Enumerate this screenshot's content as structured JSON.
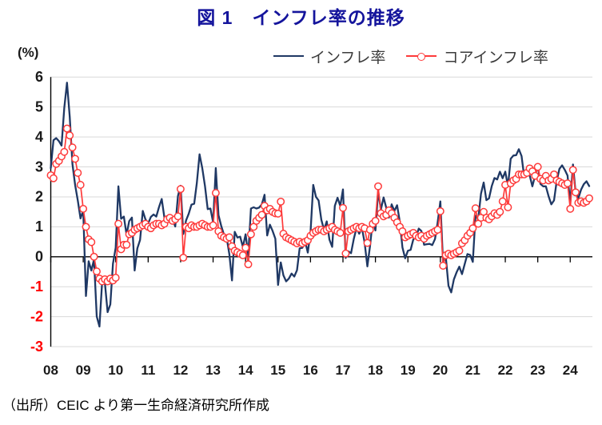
{
  "title": "図 1　インフレ率の推移",
  "y_axis_unit": "(%)",
  "source_note": "（出所）CEIC より第一生命経済研究所作成",
  "colors": {
    "title": "#14149c",
    "inflation_line": "#1f3864",
    "core_line": "#fe3b3b",
    "negative_axis_label": "#ff0000",
    "axis_label": "#1a1a1a",
    "gridline": "#d9d9d9",
    "axis_line": "#000000"
  },
  "chart_data": {
    "type": "line",
    "frequency": "monthly",
    "start": "2008-01",
    "end": "2024-08",
    "title": "図 1　インフレ率の推移",
    "xlabel": "",
    "ylabel": "(%)",
    "ylim": [
      -3,
      6
    ],
    "y_tick_step": 1,
    "grid": "horizontal",
    "legend_position": "top-right",
    "x_tick_labels": [
      "08",
      "09",
      "10",
      "11",
      "12",
      "13",
      "14",
      "15",
      "16",
      "17",
      "18",
      "19",
      "20",
      "21",
      "22",
      "23",
      "24"
    ],
    "series": [
      {
        "name": "インフレ率",
        "color": "#1f3864",
        "marker": "none",
        "values": [
          2.96,
          3.89,
          3.96,
          3.86,
          3.71,
          4.97,
          5.81,
          4.68,
          3.1,
          2.39,
          1.88,
          1.28,
          1.55,
          -1.31,
          -0.15,
          -0.46,
          -0.09,
          -1.99,
          -2.33,
          -0.81,
          -0.87,
          -1.85,
          -1.59,
          -0.23,
          0.3,
          2.35,
          1.27,
          1.34,
          0.74,
          1.19,
          1.31,
          -0.46,
          0.28,
          0.56,
          1.53,
          1.25,
          1.11,
          1.33,
          1.41,
          1.34,
          1.66,
          1.93,
          1.31,
          1.34,
          1.35,
          1.25,
          1.01,
          2.03,
          2.37,
          0.76,
          1.21,
          1.44,
          1.74,
          1.77,
          2.46,
          3.42,
          2.96,
          2.36,
          1.59,
          1.61,
          1.15,
          2.96,
          1.39,
          1.03,
          0.74,
          0.64,
          0.08,
          -0.79,
          0.83,
          0.64,
          0.67,
          0.33,
          0.75,
          0.05,
          1.61,
          1.65,
          1.61,
          1.64,
          1.75,
          2.07,
          0.71,
          1.07,
          0.86,
          0.6,
          -0.94,
          -0.19,
          -0.62,
          -0.82,
          -0.73,
          -0.56,
          -0.66,
          -0.45,
          0.28,
          0.3,
          0.53,
          0.14,
          0.81,
          2.4,
          2.0,
          1.88,
          1.24,
          0.9,
          1.18,
          0.57,
          0.33,
          1.7,
          1.97,
          1.7,
          2.25,
          -0.04,
          0.18,
          0.12,
          0.59,
          0.96,
          0.77,
          0.96,
          0.47,
          -0.32,
          0.35,
          1.21,
          0.88,
          2.19,
          1.57,
          1.98,
          1.64,
          1.31,
          1.75,
          1.53,
          1.72,
          1.17,
          0.31,
          -0.05,
          0.2,
          0.23,
          0.58,
          0.66,
          0.94,
          0.86,
          0.4,
          0.42,
          0.43,
          0.39,
          0.59,
          1.14,
          1.85,
          -0.21,
          0.0,
          -0.97,
          -1.19,
          -0.76,
          -0.52,
          -0.33,
          -0.58,
          -0.24,
          0.09,
          0.06,
          -0.17,
          1.37,
          1.26,
          2.1,
          2.48,
          1.89,
          1.95,
          2.36,
          2.63,
          2.58,
          2.84,
          2.62,
          2.84,
          2.36,
          3.27,
          3.38,
          3.39,
          3.59,
          3.36,
          2.66,
          2.75,
          2.72,
          2.35,
          2.71,
          3.04,
          2.43,
          2.35,
          2.35,
          2.02,
          1.75,
          1.88,
          2.52,
          2.93,
          3.05,
          2.9,
          2.71,
          1.79,
          3.08,
          2.14,
          1.95,
          2.24,
          2.42,
          2.52,
          2.36
        ]
      },
      {
        "name": "コアインフレ率",
        "color": "#fe3b3b",
        "marker": "open-circle",
        "values": [
          2.72,
          2.62,
          3.1,
          3.2,
          3.35,
          3.5,
          4.28,
          4.05,
          3.65,
          3.27,
          2.8,
          2.4,
          1.6,
          1.0,
          0.58,
          0.49,
          0.0,
          -0.49,
          -0.73,
          -0.82,
          -0.75,
          -0.82,
          -0.73,
          -0.79,
          -0.7,
          1.1,
          0.25,
          0.4,
          0.4,
          0.75,
          0.8,
          0.9,
          0.95,
          1.0,
          1.05,
          1.1,
          1.0,
          0.95,
          1.05,
          1.1,
          1.1,
          1.05,
          1.1,
          1.25,
          1.3,
          1.2,
          1.25,
          1.35,
          2.26,
          -0.03,
          1.0,
          0.95,
          1.05,
          1.0,
          1.0,
          1.05,
          1.1,
          1.05,
          1.0,
          1.0,
          1.05,
          2.13,
          0.85,
          0.7,
          0.65,
          0.6,
          0.65,
          0.35,
          0.2,
          0.15,
          0.1,
          0.05,
          0.3,
          -0.25,
          0.75,
          1.0,
          1.2,
          1.3,
          1.4,
          1.7,
          1.55,
          1.6,
          1.5,
          1.45,
          1.44,
          1.84,
          0.77,
          0.65,
          0.6,
          0.55,
          0.5,
          0.45,
          0.5,
          0.45,
          0.5,
          0.55,
          0.7,
          0.8,
          0.85,
          0.9,
          0.9,
          0.85,
          0.9,
          0.95,
          1.0,
          0.9,
          0.85,
          0.8,
          1.63,
          0.11,
          0.85,
          0.9,
          0.95,
          1.0,
          0.95,
          1.0,
          0.95,
          0.46,
          0.9,
          1.1,
          1.2,
          2.35,
          1.45,
          1.35,
          1.4,
          1.55,
          1.45,
          1.3,
          1.15,
          1.0,
          0.85,
          0.65,
          0.7,
          0.75,
          0.8,
          0.7,
          0.65,
          0.7,
          0.6,
          0.7,
          0.75,
          0.8,
          0.85,
          0.9,
          1.52,
          -0.3,
          0.05,
          0.1,
          0.05,
          0.1,
          0.15,
          0.2,
          0.45,
          0.55,
          0.7,
          0.8,
          0.95,
          1.62,
          1.1,
          1.3,
          1.5,
          1.3,
          1.25,
          1.35,
          1.45,
          1.4,
          1.5,
          1.85,
          2.4,
          1.65,
          2.45,
          2.55,
          2.6,
          2.75,
          2.75,
          2.75,
          2.8,
          2.95,
          2.85,
          2.7,
          3.0,
          2.6,
          2.55,
          2.7,
          2.55,
          2.6,
          2.75,
          2.55,
          2.5,
          2.45,
          2.4,
          2.45,
          1.6,
          2.9,
          2.15,
          1.8,
          1.85,
          1.8,
          1.85,
          1.95
        ]
      }
    ]
  }
}
